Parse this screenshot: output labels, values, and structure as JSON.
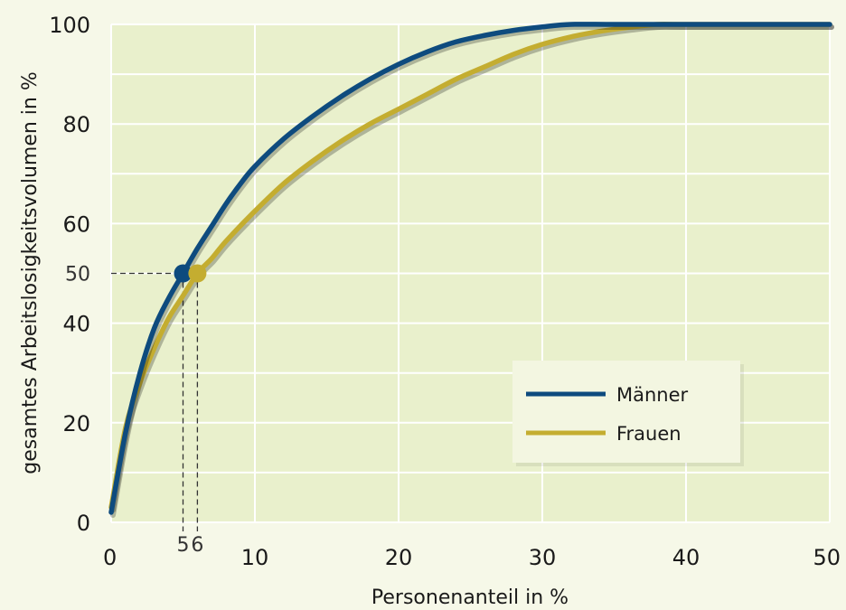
{
  "chart_data": {
    "type": "line",
    "title": "",
    "xlabel": "Personenanteil in %",
    "ylabel": "gesamtes Arbeitslosigkeitsvolumen in %",
    "xlim": [
      0,
      50
    ],
    "ylim": [
      0,
      100
    ],
    "x_ticks": [
      0,
      10,
      20,
      30,
      40,
      50
    ],
    "y_ticks": [
      0,
      20,
      40,
      60,
      80,
      100
    ],
    "grid": true,
    "legend_position": "bottom-right",
    "series": [
      {
        "name": "Männer",
        "color": "#0e4b7e",
        "points": [
          [
            0,
            2
          ],
          [
            1,
            18
          ],
          [
            2,
            30
          ],
          [
            3,
            39
          ],
          [
            4,
            45
          ],
          [
            5,
            50
          ],
          [
            6,
            55
          ],
          [
            7,
            59.5
          ],
          [
            8,
            64
          ],
          [
            9,
            68
          ],
          [
            10,
            71.5
          ],
          [
            12,
            77
          ],
          [
            14,
            81.5
          ],
          [
            16,
            85.5
          ],
          [
            18,
            89
          ],
          [
            20,
            92
          ],
          [
            22,
            94.5
          ],
          [
            24,
            96.5
          ],
          [
            26,
            97.8
          ],
          [
            28,
            98.8
          ],
          [
            30,
            99.5
          ],
          [
            32,
            100
          ],
          [
            35,
            100
          ],
          [
            40,
            100
          ],
          [
            50,
            100
          ]
        ]
      },
      {
        "name": "Frauen",
        "color": "#c4ad30",
        "points": [
          [
            0,
            3
          ],
          [
            1,
            19
          ],
          [
            2,
            28
          ],
          [
            3,
            35
          ],
          [
            4,
            41
          ],
          [
            5,
            45.5
          ],
          [
            6,
            50
          ],
          [
            7,
            53
          ],
          [
            8,
            56.5
          ],
          [
            10,
            62.5
          ],
          [
            12,
            68
          ],
          [
            14,
            72.5
          ],
          [
            16,
            76.5
          ],
          [
            18,
            80
          ],
          [
            20,
            83
          ],
          [
            22,
            86
          ],
          [
            24,
            89
          ],
          [
            26,
            91.5
          ],
          [
            28,
            94
          ],
          [
            30,
            96
          ],
          [
            32,
            97.5
          ],
          [
            34,
            98.6
          ],
          [
            36,
            99.4
          ],
          [
            38,
            100
          ],
          [
            40,
            100
          ],
          [
            50,
            100
          ]
        ]
      }
    ],
    "annotations": {
      "level_y": 50,
      "level_label": "50",
      "markers": [
        {
          "series": "Männer",
          "x": 5,
          "y": 50,
          "label": "5"
        },
        {
          "series": "Frauen",
          "x": 6,
          "y": 50,
          "label": "6"
        }
      ]
    }
  }
}
